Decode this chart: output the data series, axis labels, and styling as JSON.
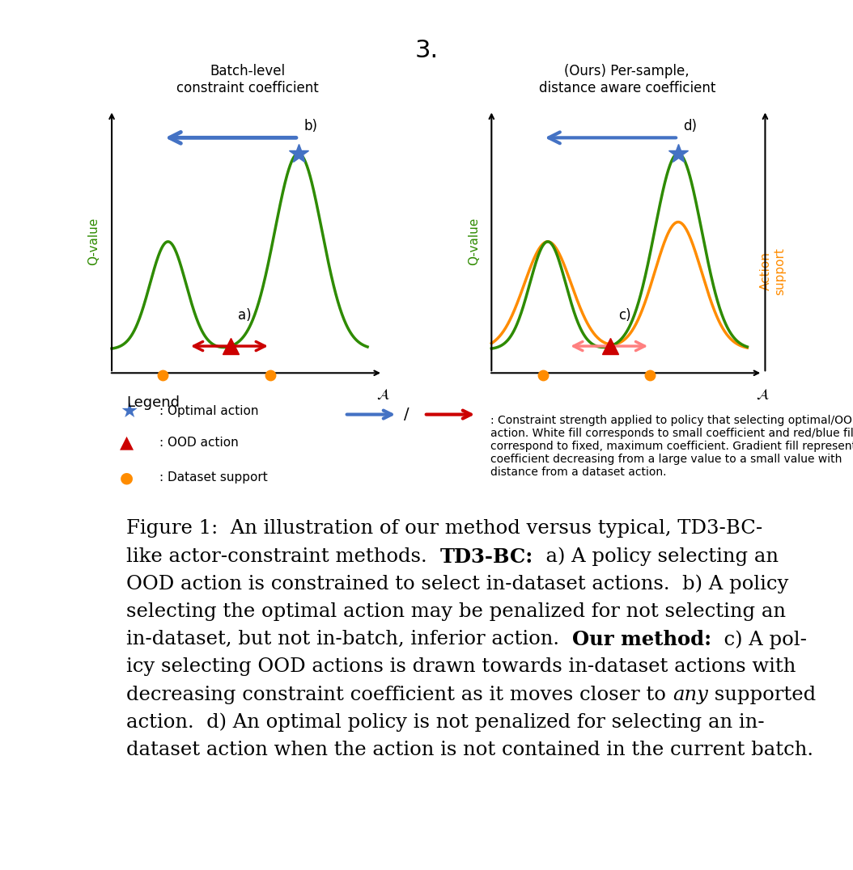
{
  "title_number": "3.",
  "left_title_line1": "Batch-level",
  "left_title_line2": "constraint coefficient",
  "right_title_line1": "(Ours) Per-sample,",
  "right_title_line2": "distance aware coefficient",
  "xlabel": " ¤",
  "ylabel_left": "Q-value",
  "ylabel_right": "Action\nsupport",
  "green_color": "#2E8B00",
  "orange_color": "#FF8C00",
  "blue_color": "#4472C4",
  "red_color": "#CC0000",
  "orange_dot_color": "#FF8C00",
  "figure_caption": "Figure 1:  An illustration of our method versus typical, TD3-BC-like actor-constraint methods.  TD3-BC:  a) A policy selecting an OOD action is constrained to select in-dataset actions.  b) A policy selecting the optimal action may be penalized for not selecting an in-dataset, but not in-batch, inferior action.  Our method:  c) A policy selecting OOD actions is drawn towards in-dataset actions with decreasing constraint coefficient as it moves closer to any supported action.  d) An optimal policy is not penalized for selecting an in-dataset action when the action is not contained in the current batch.",
  "legend_optimal": ": Optimal action",
  "legend_ood": ": OOD action",
  "legend_dataset": ": Dataset support",
  "legend_arrow_text": ": Constraint strength applied to policy that selecting optimal/OOD\naction. White fill corresponds to small coefficient and red/blue fill\ncorrespond to fixed, maximum coefficient. Gradient fill represents\ncoefficient decreasing from a large value to a small value with\ndistance from a dataset action.",
  "bg_color": "#FFFFFF"
}
